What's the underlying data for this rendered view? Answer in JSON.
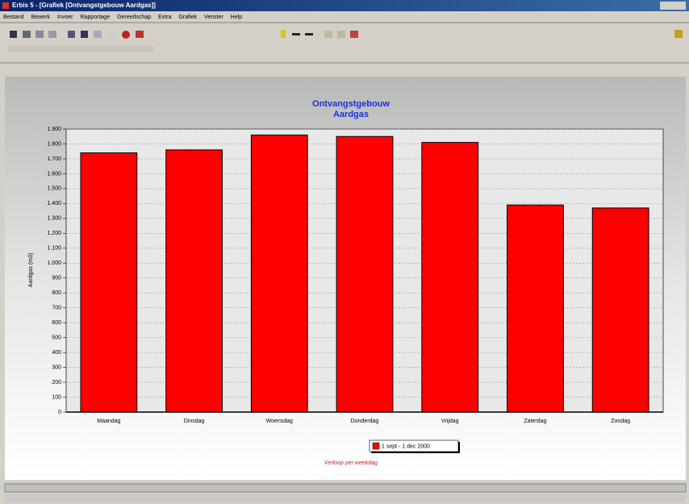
{
  "window": {
    "title": "Erbis 5 - [Grafiek [Ontvangstgebouw Aardgas]]",
    "menu": [
      "Bestand",
      "Bewerk",
      "Invoer",
      "Rapportage",
      "Gereedschap",
      "Extra",
      "Grafiek",
      "Venster",
      "Help"
    ]
  },
  "chart_data": {
    "type": "bar",
    "title": "Ontvangstgebouw",
    "subtitle": "Aardgas",
    "y_label": "Aardgas (m3)",
    "annotation": "Verloop per weekdag",
    "categories": [
      "Maandag",
      "Dinsdag",
      "Woensdag",
      "Donderdag",
      "Vrijdag",
      "Zaterdag",
      "Zondag"
    ],
    "series": [
      {
        "name": "1 sept - 1 dec 2000",
        "color": "#ff0000",
        "values": [
          1740,
          1760,
          1860,
          1850,
          1810,
          1390,
          1370
        ]
      }
    ],
    "ylim": [
      0,
      1900
    ],
    "yticks": [
      0,
      100,
      200,
      300,
      400,
      500,
      600,
      700,
      800,
      900,
      {
        "value": 1000,
        "label": "1.000"
      },
      {
        "value": 1100,
        "label": "1.100"
      },
      {
        "value": 1200,
        "label": "1.200"
      },
      {
        "value": 1300,
        "label": "1.300"
      },
      {
        "value": 1400,
        "label": "1.400"
      },
      {
        "value": 1500,
        "label": "1.500"
      },
      {
        "value": 1600,
        "label": "1.600"
      },
      {
        "value": 1700,
        "label": "1.700"
      },
      {
        "value": 1800,
        "label": "1.800"
      },
      {
        "value": 1900,
        "label": "1.900"
      }
    ],
    "grid": true,
    "legend": "bottom"
  }
}
